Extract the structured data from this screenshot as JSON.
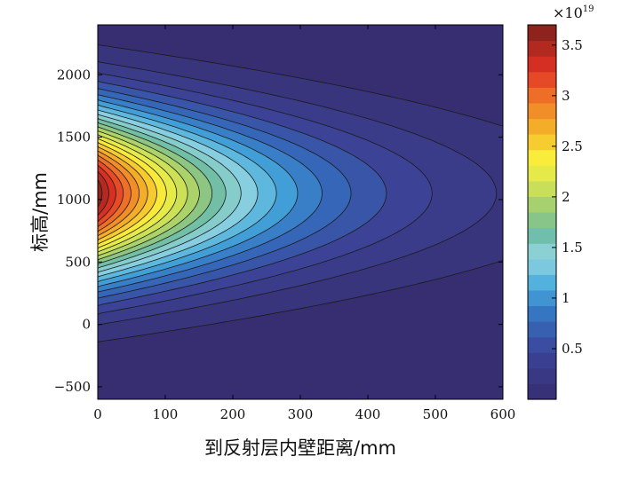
{
  "chart_data": {
    "type": "contour",
    "xlabel": "到反射层内壁距离/mm",
    "ylabel": "标高/mm",
    "xlim": [
      0,
      600
    ],
    "ylim": [
      -600,
      2400
    ],
    "xticks": [
      0,
      100,
      200,
      300,
      400,
      500,
      600
    ],
    "yticks": [
      -500,
      0,
      500,
      1000,
      1500,
      2000
    ],
    "colorbar": {
      "exponent_label": "×10",
      "exponent_power": "19",
      "range": [
        0,
        3.7
      ],
      "ticks": [
        0.5,
        1,
        1.5,
        2,
        2.5,
        3,
        3.5
      ],
      "tick_labels": [
        "0.5",
        "1",
        "1.5",
        "2",
        "2.5",
        "3",
        "3.5"
      ],
      "levels": 24,
      "colormap": "jet"
    },
    "field": {
      "peak_value": 3.7,
      "peak_elevation": 1050,
      "lowest_level": 0.15,
      "contour_levels": [
        0.15,
        0.3,
        0.45,
        0.6,
        0.75,
        0.9,
        1.05,
        1.2,
        1.35,
        1.5,
        1.65,
        1.8,
        1.95,
        2.1,
        2.25,
        2.4,
        2.55,
        2.7,
        2.85,
        3.0,
        3.15,
        3.3,
        3.45,
        3.6
      ],
      "outer_contour_extent": {
        "x_max": 460,
        "y_top": 1940,
        "y_bottom": 180
      }
    },
    "colors": {
      "background_level": "#362e70",
      "peak_level": "#7d1f1b"
    }
  }
}
